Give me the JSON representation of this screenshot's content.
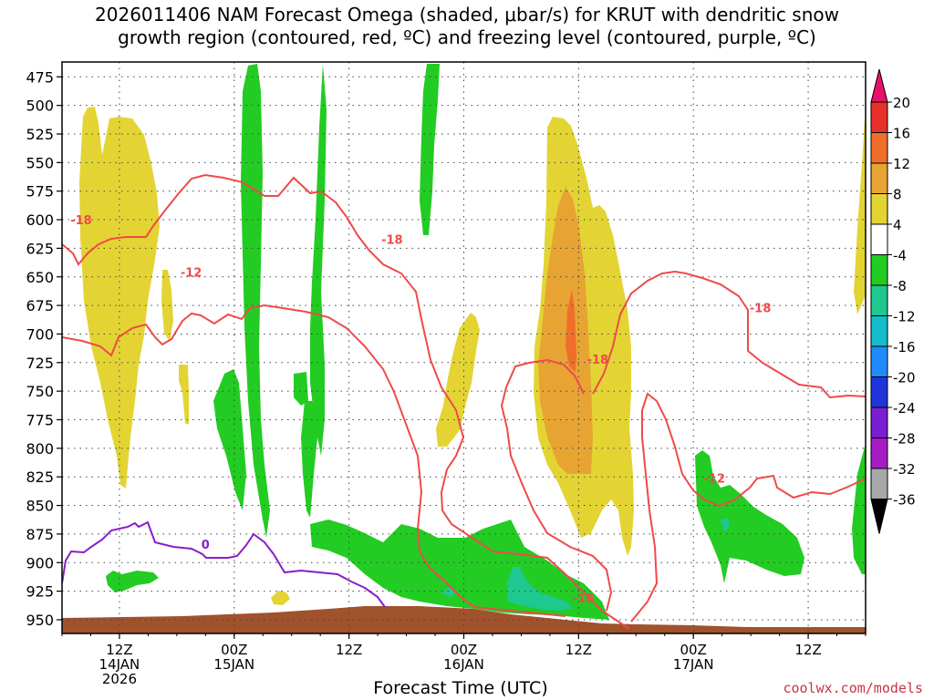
{
  "title": {
    "line1": "2026011406 NAM Forecast Omega (shaded, μbar/s) for KRUT with dendritic snow",
    "line2": "growth region (contoured, red, ºC) and freezing level (contoured, purple, ºC)"
  },
  "credit": "coolwx.com/models",
  "chart_data": {
    "type": "heatmap",
    "xlabel": "Forecast Time (UTC)",
    "ylabel": "",
    "x_ticks": [
      {
        "hour": 6,
        "lines": [
          "12Z",
          "14JAN",
          "2026"
        ]
      },
      {
        "hour": 18,
        "lines": [
          "00Z",
          "15JAN"
        ]
      },
      {
        "hour": 30,
        "lines": [
          "12Z"
        ]
      },
      {
        "hour": 42,
        "lines": [
          "00Z",
          "16JAN"
        ]
      },
      {
        "hour": 54,
        "lines": [
          "12Z"
        ]
      },
      {
        "hour": 66,
        "lines": [
          "00Z",
          "17JAN"
        ]
      },
      {
        "hour": 78,
        "lines": [
          "12Z"
        ]
      }
    ],
    "y_ticks": [
      475,
      500,
      525,
      550,
      575,
      600,
      625,
      650,
      675,
      700,
      725,
      750,
      775,
      800,
      825,
      850,
      875,
      900,
      925,
      950
    ],
    "y_range_hpa": [
      462,
      962
    ],
    "x_range_hours": [
      0,
      84
    ],
    "grid": true,
    "colorbar": {
      "labels": [
        "20",
        "16",
        "12",
        "8",
        "4",
        "-4",
        "-8",
        "-12",
        "-16",
        "-20",
        "-24",
        "-28",
        "-32",
        "-36"
      ],
      "colors": [
        "#e8106a",
        "#e8302a",
        "#ef6f2a",
        "#e8a432",
        "#e3d434",
        "#ffffff",
        "#22cc22",
        "#1ec88e",
        "#15bccc",
        "#1f8bff",
        "#2035d9",
        "#7a1ed6",
        "#a51cc4",
        "#a8a8a8",
        "#000000"
      ]
    },
    "series": [
      {
        "name": "Omega (shaded, μbar/s)",
        "color": "#e3d434"
      },
      {
        "name": "dendritic snow growth region (contoured, red, ºC)",
        "color": "#ef4a4a"
      },
      {
        "name": "freezing level (contoured, purple, ºC)",
        "color": "#8a1ec8"
      }
    ],
    "contour_labels": [
      {
        "text": "-18",
        "hour": 2.0,
        "p": 600,
        "color": "#ef4a4a"
      },
      {
        "text": "-12",
        "hour": 13.5,
        "p": 646,
        "color": "#ef4a4a"
      },
      {
        "text": "-18",
        "hour": 34.5,
        "p": 617,
        "color": "#ef4a4a"
      },
      {
        "text": "-18",
        "hour": 56.0,
        "p": 722,
        "color": "#ef4a4a"
      },
      {
        "text": "-18",
        "hour": 73.0,
        "p": 677,
        "color": "#ef4a4a"
      },
      {
        "text": "-12",
        "hour": 68.2,
        "p": 826,
        "color": "#ef4a4a"
      },
      {
        "text": "-18",
        "hour": 54.5,
        "p": 931,
        "color": "#ef4a4a"
      },
      {
        "text": "0",
        "hour": 15.0,
        "p": 884,
        "color": "#8a1ec8"
      }
    ]
  }
}
